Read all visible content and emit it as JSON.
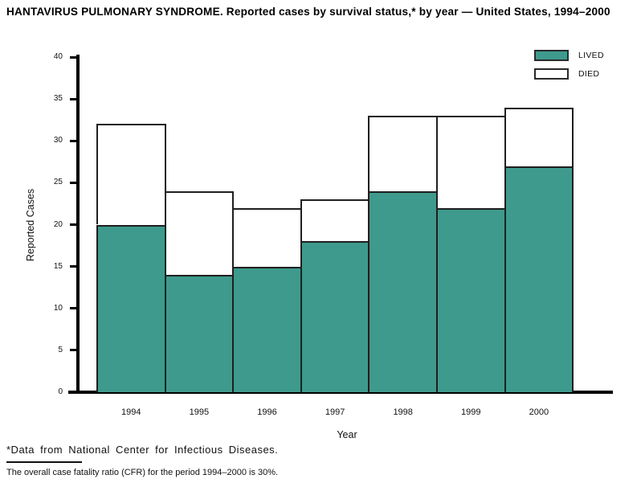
{
  "title": "HANTAVIRUS PULMONARY SYNDROME. Reported cases by survival status,* by year — United States, 1994–2000",
  "chart_data": {
    "type": "bar",
    "stacked": true,
    "title": "HANTAVIRUS PULMONARY SYNDROME. Reported cases by survival status,* by year — United States, 1994–2000",
    "categories": [
      "1994",
      "1995",
      "1996",
      "1997",
      "1998",
      "1999",
      "2000"
    ],
    "series": [
      {
        "name": "LIVED",
        "color": "#3E9A8C",
        "values": [
          20,
          14,
          15,
          18,
          24,
          22,
          27
        ]
      },
      {
        "name": "DIED",
        "color": "#FFFFFF",
        "values": [
          12,
          10,
          7,
          5,
          9,
          11,
          7
        ]
      }
    ],
    "totals": [
      32,
      24,
      22,
      23,
      33,
      33,
      34
    ],
    "xlabel": "Year",
    "ylabel": "Reported Cases",
    "ylim": [
      0,
      40
    ],
    "y_ticks": [
      0,
      5,
      10,
      15,
      20,
      25,
      30,
      35,
      40
    ],
    "grid": false,
    "legend_position": "top-right",
    "bar_border_color": "#1F1F1F",
    "axis_color": "#000000"
  },
  "legend": {
    "items": [
      {
        "label": "LIVED",
        "color": "#3E9A8C"
      },
      {
        "label": "DIED",
        "color": "#FFFFFF"
      }
    ]
  },
  "footnotes": {
    "source": "*Data from National Center for Infectious Diseases.",
    "cfr": "The overall case fatality ratio (CFR) for the period 1994–2000 is 30%."
  }
}
